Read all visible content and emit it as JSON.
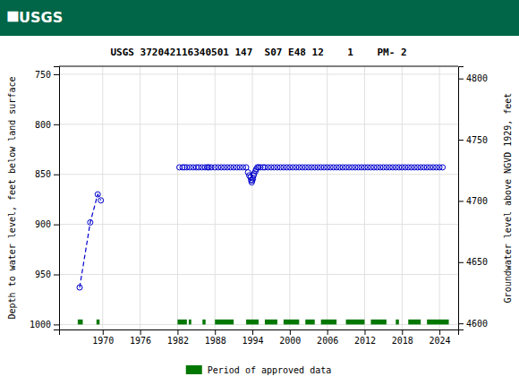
{
  "chart_data": {
    "type": "scatter",
    "title": "USGS 372042116340501 147  S07 E48 12    1    PM- 2",
    "annotations": [
      "⯀USGS"
    ],
    "ylabel": "Depth to water level, feet below land surface",
    "y2label": "Groundwater level above NGVD 1929, feet",
    "xlim": [
      1963,
      2027
    ],
    "xticks": [
      1970,
      1976,
      1982,
      1988,
      1994,
      2000,
      2006,
      2012,
      2018,
      2024
    ],
    "ylim": [
      1005,
      742
    ],
    "yticks": [
      750,
      800,
      850,
      900,
      950,
      1000
    ],
    "y2lim": [
      4595,
      4810
    ],
    "y2ticks": [
      4600,
      4650,
      4700,
      4750,
      4800
    ],
    "grid": true,
    "legend": "bottom",
    "series": [
      {
        "type": "line",
        "line_style": "dashed",
        "marker": "circle-open",
        "color": "#0000cd",
        "x": [
          1966.3,
          1968.0,
          1969.2,
          1969.7
        ],
        "values": [
          963,
          898,
          870,
          876
        ]
      },
      {
        "type": "scatter",
        "marker": "circle-open",
        "color": "#0000cd",
        "x": [
          1982.3,
          1982.8,
          1983.1,
          1983.5,
          1984.0,
          1984.5,
          1985.0,
          1985.4,
          1985.9,
          1986.4,
          1986.8,
          1987.0,
          1987.4,
          1988.0,
          1988.5,
          1989.0,
          1989.5,
          1990.0,
          1990.5,
          1991.0,
          1991.5,
          1992.0,
          1992.5,
          1993.0,
          1993.3,
          1993.5,
          1993.7,
          1993.8,
          1993.9,
          1994.0,
          1994.1,
          1994.2,
          1994.3,
          1994.5,
          1994.6,
          1994.8,
          1995.0,
          1995.3,
          1995.7,
          1996.0,
          1996.5,
          1997.0,
          1997.5,
          1998.0,
          1998.5,
          1999.0,
          1999.5,
          2000.0,
          2000.5,
          2001.0,
          2001.5,
          2002.0,
          2002.5,
          2003.0,
          2003.5,
          2004.0,
          2004.5,
          2005.0,
          2005.5,
          2006.0,
          2006.5,
          2007.0,
          2007.5,
          2008.0,
          2008.5,
          2009.0,
          2009.5,
          2010.0,
          2010.5,
          2011.0,
          2011.5,
          2012.0,
          2012.5,
          2013.0,
          2013.5,
          2014.0,
          2014.5,
          2015.0,
          2015.5,
          2016.0,
          2016.5,
          2017.0,
          2017.5,
          2018.0,
          2018.5,
          2019.0,
          2019.5,
          2020.0,
          2020.5,
          2021.0,
          2021.5,
          2022.0,
          2022.5,
          2023.0,
          2023.5,
          2024.0,
          2024.5
        ],
        "values": [
          843,
          843,
          843,
          843,
          843,
          843,
          843,
          843,
          843,
          843,
          843,
          843,
          843,
          843,
          843,
          843,
          843,
          843,
          843,
          843,
          843,
          843,
          843,
          843,
          848,
          851,
          853,
          856,
          858,
          856,
          854,
          851,
          849,
          847,
          845,
          843,
          843,
          843,
          843,
          843,
          843,
          843,
          843,
          843,
          843,
          843,
          843,
          843,
          843,
          843,
          843,
          843,
          843,
          843,
          843,
          843,
          843,
          843,
          843,
          843,
          843,
          843,
          843,
          843,
          843,
          843,
          843,
          843,
          843,
          843,
          843,
          843,
          843,
          843,
          843,
          843,
          843,
          843,
          843,
          843,
          843,
          843,
          843,
          843,
          843,
          843,
          843,
          843,
          843,
          843,
          843,
          843,
          843,
          843,
          843,
          843,
          843
        ]
      },
      {
        "name": "Period of approved data",
        "type": "span",
        "color": "#007700",
        "y_range": [
          1000,
          995
        ],
        "periods": [
          [
            1966.0,
            1966.8
          ],
          [
            1969.0,
            1969.5
          ],
          [
            1982.0,
            1983.5
          ],
          [
            1983.8,
            1984.2
          ],
          [
            1986.0,
            1986.5
          ],
          [
            1988.0,
            1991.0
          ],
          [
            1993.0,
            1995.0
          ],
          [
            1996.0,
            1998.0
          ],
          [
            1999.0,
            2001.5
          ],
          [
            2002.5,
            2004.0
          ],
          [
            2005.0,
            2007.5
          ],
          [
            2009.0,
            2012.0
          ],
          [
            2013.0,
            2015.5
          ],
          [
            2017.0,
            2017.5
          ],
          [
            2019.0,
            2021.0
          ],
          [
            2022.0,
            2025.5
          ]
        ]
      }
    ]
  }
}
